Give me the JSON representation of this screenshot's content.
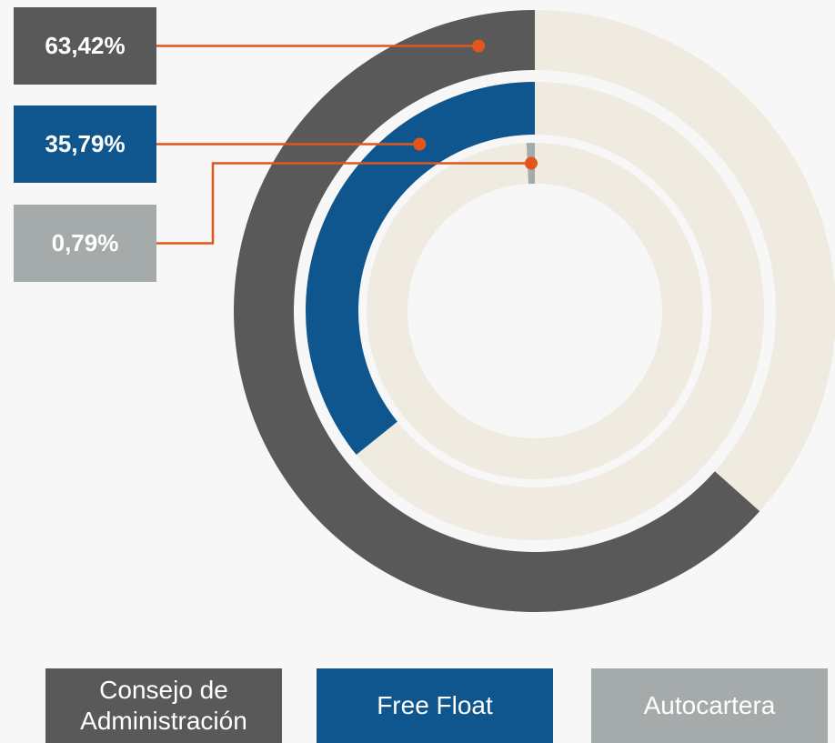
{
  "chart_data": {
    "type": "radial_bar",
    "categories": [
      "Consejo de Administración",
      "Free Float",
      "Autocartera"
    ],
    "values": [
      63.42,
      35.79,
      0.79
    ],
    "value_labels": [
      "63,42%",
      "35,79%",
      "0,79%"
    ],
    "colors": [
      "#595959",
      "#10568e",
      "#a5aaab"
    ],
    "track_color": "#efebe0",
    "connector_color": "#e2561c"
  }
}
